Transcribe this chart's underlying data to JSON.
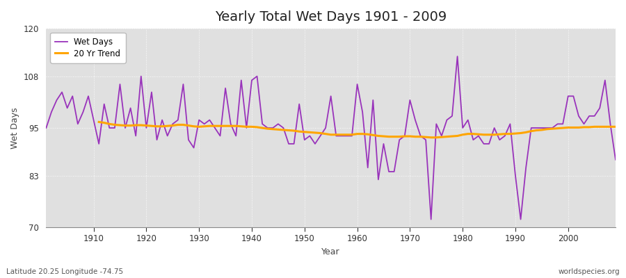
{
  "title": "Yearly Total Wet Days 1901 - 2009",
  "xlabel": "Year",
  "ylabel": "Wet Days",
  "footnote_left": "Latitude 20.25 Longitude -74.75",
  "footnote_right": "worldspecies.org",
  "ylim": [
    70,
    120
  ],
  "yticks": [
    70,
    83,
    95,
    108,
    120
  ],
  "xlim": [
    1901,
    2009
  ],
  "xticks": [
    1910,
    1920,
    1930,
    1940,
    1950,
    1960,
    1970,
    1980,
    1990,
    2000
  ],
  "wet_days_color": "#9933bb",
  "trend_color": "#ffa500",
  "fig_bg_color": "#ffffff",
  "plot_bg_color": "#e0e0e0",
  "years": [
    1901,
    1902,
    1903,
    1904,
    1905,
    1906,
    1907,
    1908,
    1909,
    1910,
    1911,
    1912,
    1913,
    1914,
    1915,
    1916,
    1917,
    1918,
    1919,
    1920,
    1921,
    1922,
    1923,
    1924,
    1925,
    1926,
    1927,
    1928,
    1929,
    1930,
    1931,
    1932,
    1933,
    1934,
    1935,
    1936,
    1937,
    1938,
    1939,
    1940,
    1941,
    1942,
    1943,
    1944,
    1945,
    1946,
    1947,
    1948,
    1949,
    1950,
    1951,
    1952,
    1953,
    1954,
    1955,
    1956,
    1957,
    1958,
    1959,
    1960,
    1961,
    1962,
    1963,
    1964,
    1965,
    1966,
    1967,
    1968,
    1969,
    1970,
    1971,
    1972,
    1973,
    1974,
    1975,
    1976,
    1977,
    1978,
    1979,
    1980,
    1981,
    1982,
    1983,
    1984,
    1985,
    1986,
    1987,
    1988,
    1989,
    1990,
    1991,
    1992,
    1993,
    1994,
    1995,
    1996,
    1997,
    1998,
    1999,
    2000,
    2001,
    2002,
    2003,
    2004,
    2005,
    2006,
    2007,
    2008,
    2009
  ],
  "wet_days": [
    95,
    99,
    102,
    104,
    100,
    103,
    96,
    99,
    103,
    97,
    91,
    101,
    95,
    95,
    106,
    95,
    100,
    93,
    108,
    95,
    104,
    92,
    97,
    93,
    96,
    97,
    106,
    92,
    90,
    97,
    96,
    97,
    95,
    93,
    105,
    96,
    93,
    107,
    95,
    107,
    108,
    96,
    95,
    95,
    96,
    95,
    91,
    91,
    101,
    92,
    93,
    91,
    93,
    95,
    103,
    93,
    93,
    93,
    93,
    106,
    99,
    85,
    102,
    82,
    91,
    84,
    84,
    92,
    93,
    102,
    97,
    93,
    92,
    72,
    96,
    93,
    97,
    98,
    113,
    95,
    97,
    92,
    93,
    91,
    91,
    95,
    92,
    93,
    96,
    83,
    72,
    85,
    95,
    95,
    95,
    95,
    95,
    96,
    96,
    103,
    103,
    98,
    96,
    98,
    98,
    100,
    107,
    96,
    87
  ],
  "trend_years": [
    1911,
    1912,
    1913,
    1914,
    1915,
    1916,
    1917,
    1918,
    1919,
    1920,
    1921,
    1922,
    1923,
    1924,
    1925,
    1926,
    1927,
    1928,
    1929,
    1930,
    1931,
    1932,
    1933,
    1934,
    1935,
    1936,
    1937,
    1938,
    1939,
    1940,
    1941,
    1942,
    1943,
    1944,
    1945,
    1946,
    1947,
    1948,
    1949,
    1950,
    1951,
    1952,
    1953,
    1954,
    1955,
    1956,
    1957,
    1958,
    1959,
    1960,
    1961,
    1962,
    1963,
    1964,
    1965,
    1966,
    1967,
    1968,
    1969,
    1970,
    1971,
    1972,
    1973,
    1974,
    1975,
    1976,
    1977,
    1978,
    1979,
    1980,
    1981,
    1982,
    1983,
    1984,
    1985,
    1986,
    1987,
    1988,
    1989,
    1990,
    1991,
    1992,
    1993,
    1994,
    1995,
    1996,
    1997,
    1998,
    1999,
    2000,
    2001,
    2002,
    2003,
    2004,
    2005,
    2006,
    2007,
    2008,
    2009
  ],
  "trend_values": [
    96.5,
    96.3,
    96.0,
    95.8,
    95.7,
    95.6,
    95.6,
    95.7,
    95.7,
    95.6,
    95.5,
    95.4,
    95.4,
    95.5,
    95.6,
    95.8,
    95.8,
    95.6,
    95.4,
    95.3,
    95.4,
    95.5,
    95.5,
    95.5,
    95.5,
    95.5,
    95.5,
    95.4,
    95.3,
    95.3,
    95.2,
    95.0,
    94.8,
    94.7,
    94.6,
    94.5,
    94.4,
    94.3,
    94.1,
    94.0,
    93.9,
    93.8,
    93.7,
    93.5,
    93.3,
    93.3,
    93.3,
    93.3,
    93.3,
    93.5,
    93.5,
    93.4,
    93.2,
    93.0,
    92.9,
    92.8,
    92.8,
    92.8,
    92.9,
    92.9,
    92.8,
    92.8,
    92.7,
    92.6,
    92.6,
    92.7,
    92.8,
    92.9,
    93.0,
    93.3,
    93.5,
    93.5,
    93.4,
    93.3,
    93.3,
    93.3,
    93.4,
    93.5,
    93.5,
    93.6,
    93.7,
    93.9,
    94.2,
    94.4,
    94.5,
    94.7,
    94.8,
    94.9,
    95.0,
    95.1,
    95.1,
    95.1,
    95.2,
    95.2,
    95.3,
    95.3,
    95.3,
    95.3,
    95.3
  ]
}
